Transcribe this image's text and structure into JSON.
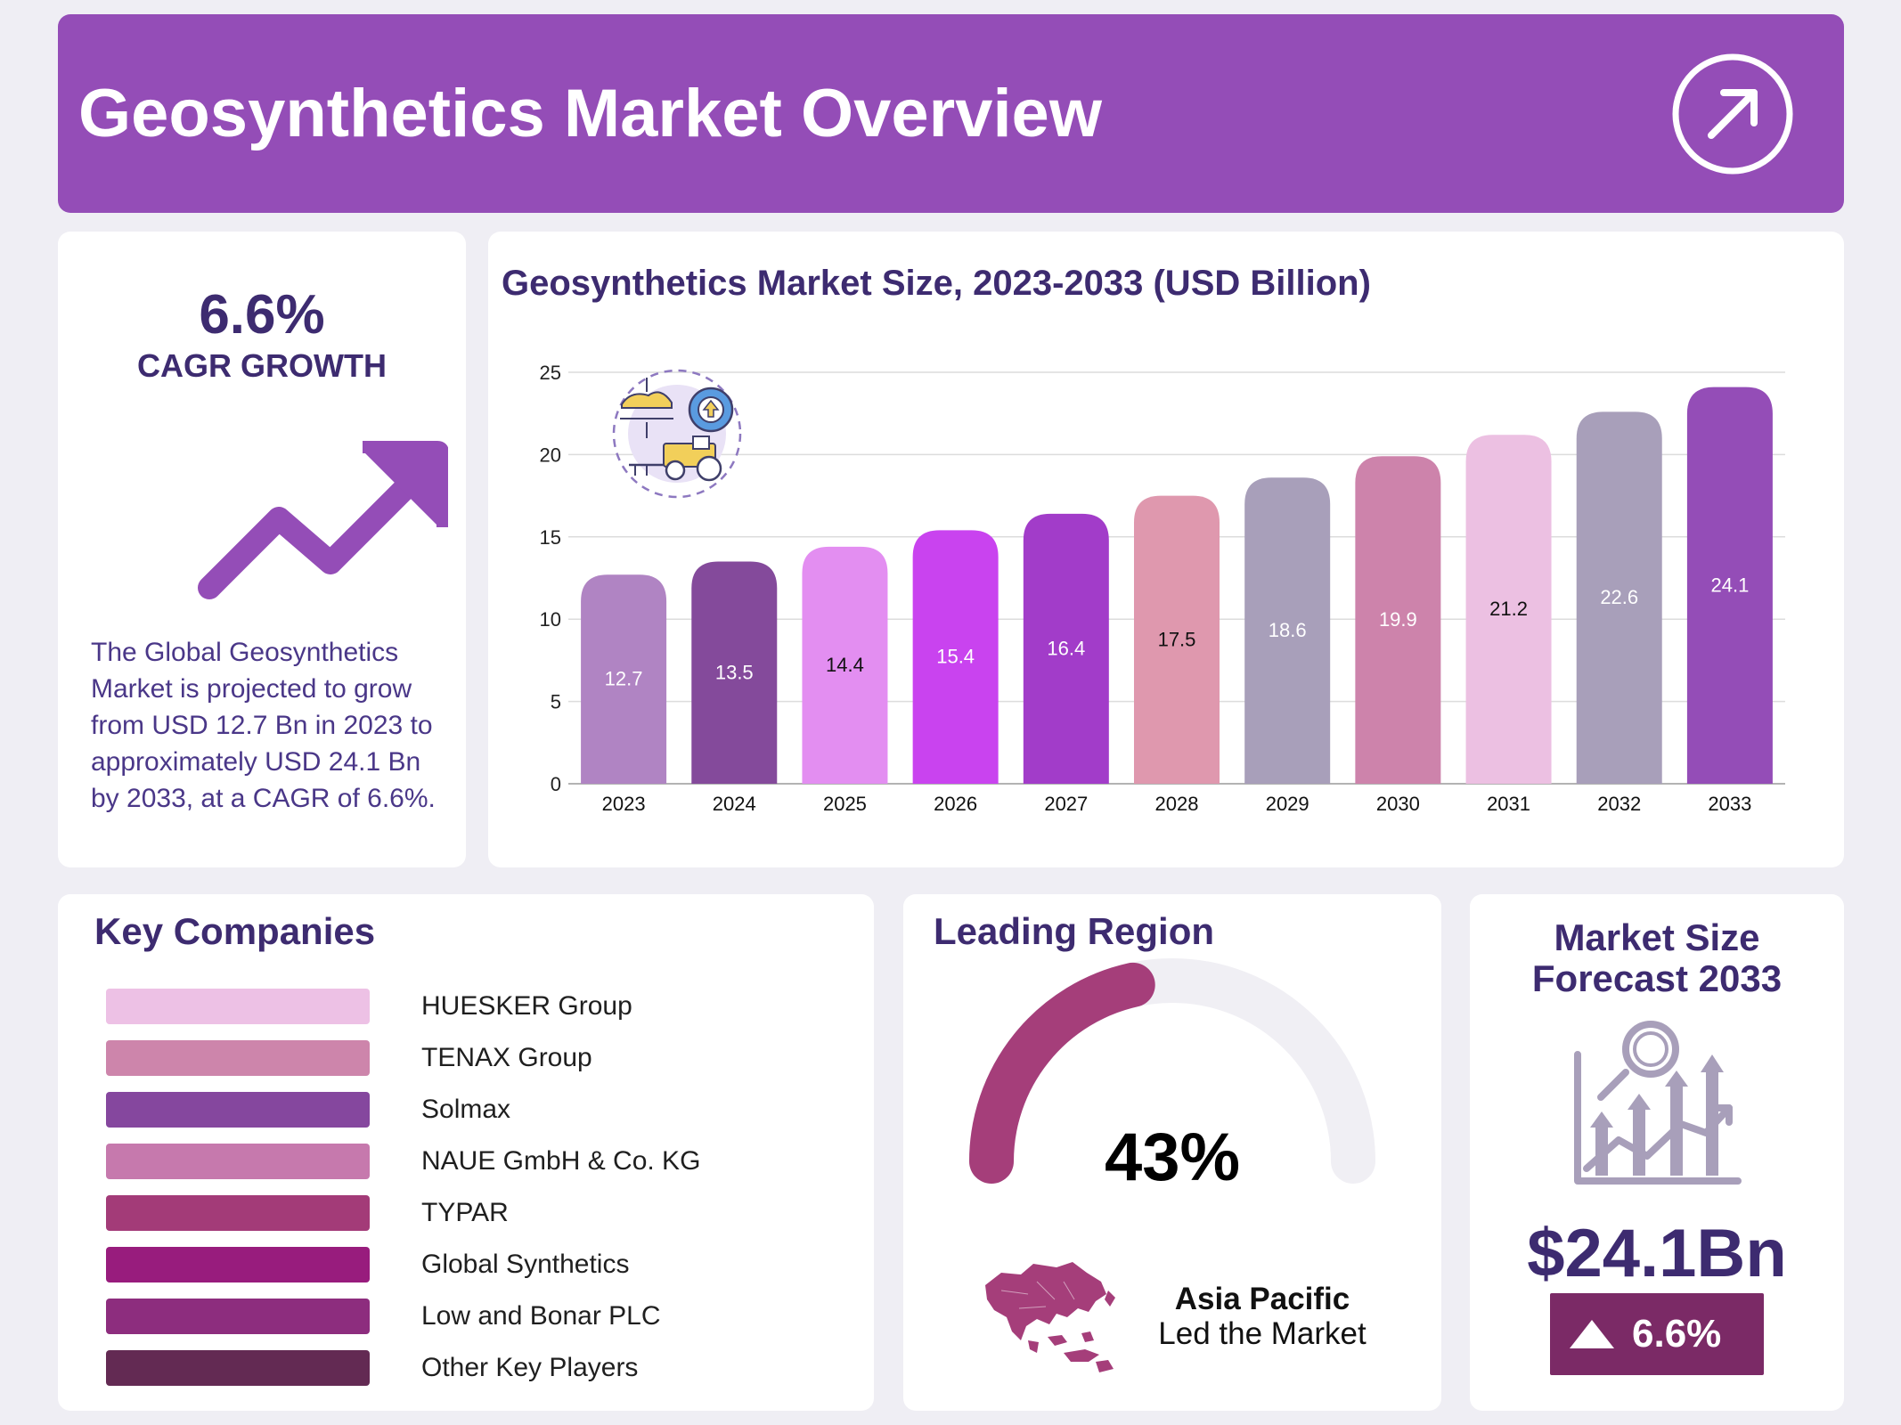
{
  "header": {
    "title": "Geosynthetics Market Overview",
    "icon": "arrow-up-right-icon"
  },
  "cagr": {
    "value": "6.6%",
    "label": "CAGR GROWTH",
    "icon": "trend-up-arrow-icon",
    "description": "The Global Geosynthetics Market is projected to grow from USD 12.7 Bn in 2023 to approximately USD 24.1 Bn by 2033, at a CAGR of 6.6%."
  },
  "chart_data": {
    "type": "bar",
    "title": "Geosynthetics Market Size, 2023-2033 (USD Billion)",
    "xlabel": "",
    "ylabel": "",
    "categories": [
      "2023",
      "2024",
      "2025",
      "2026",
      "2027",
      "2028",
      "2029",
      "2030",
      "2031",
      "2032",
      "2033"
    ],
    "values": [
      12.7,
      13.5,
      14.4,
      15.4,
      16.4,
      17.5,
      18.6,
      19.9,
      21.2,
      22.6,
      24.1
    ],
    "colors": [
      "#b084c3",
      "#844a9b",
      "#e38ef1",
      "#c943ef",
      "#a23cc9",
      "#df98ae",
      "#a89fba",
      "#cd83ab",
      "#ecc0e2",
      "#a89fba",
      "#944db7"
    ],
    "label_colors": [
      "#ffffff",
      "#ffffff",
      "#111111",
      "#ffffff",
      "#ffffff",
      "#111111",
      "#ffffff",
      "#ffffff",
      "#111111",
      "#ffffff",
      "#ffffff"
    ],
    "ylim": [
      0,
      25
    ],
    "yticks": [
      0,
      5,
      10,
      15,
      20,
      25
    ],
    "grid": true,
    "legend": "none"
  },
  "companies": {
    "title": "Key Companies",
    "items": [
      {
        "name": "HUESKER Group",
        "color": "#edc1e5"
      },
      {
        "name": "TENAX Group",
        "color": "#cd85ab"
      },
      {
        "name": "Solmax",
        "color": "#85479e"
      },
      {
        "name": "NAUE GmbH & Co. KG",
        "color": "#c679ad"
      },
      {
        "name": "TYPAR",
        "color": "#a33b78"
      },
      {
        "name": "Global Synthetics",
        "color": "#981c7d"
      },
      {
        "name": "Low and Bonar PLC",
        "color": "#8d2d7e"
      },
      {
        "name": "Other Key Players",
        "color": "#632a53"
      }
    ]
  },
  "region": {
    "title": "Leading Region",
    "percent": "43%",
    "share": 0.43,
    "gauge_color": "#a53e7a",
    "track_color": "#f0eff4",
    "name": "Asia Pacific",
    "subtitle": "Led the Market",
    "map_icon": "asia-pacific-map-icon"
  },
  "forecast": {
    "title_line1": "Market Size",
    "title_line2": "Forecast 2033",
    "icon": "growth-chart-magnifier-icon",
    "value": "$24.1Bn",
    "growth": "6.6%",
    "growth_icon": "triangle-up-icon"
  }
}
